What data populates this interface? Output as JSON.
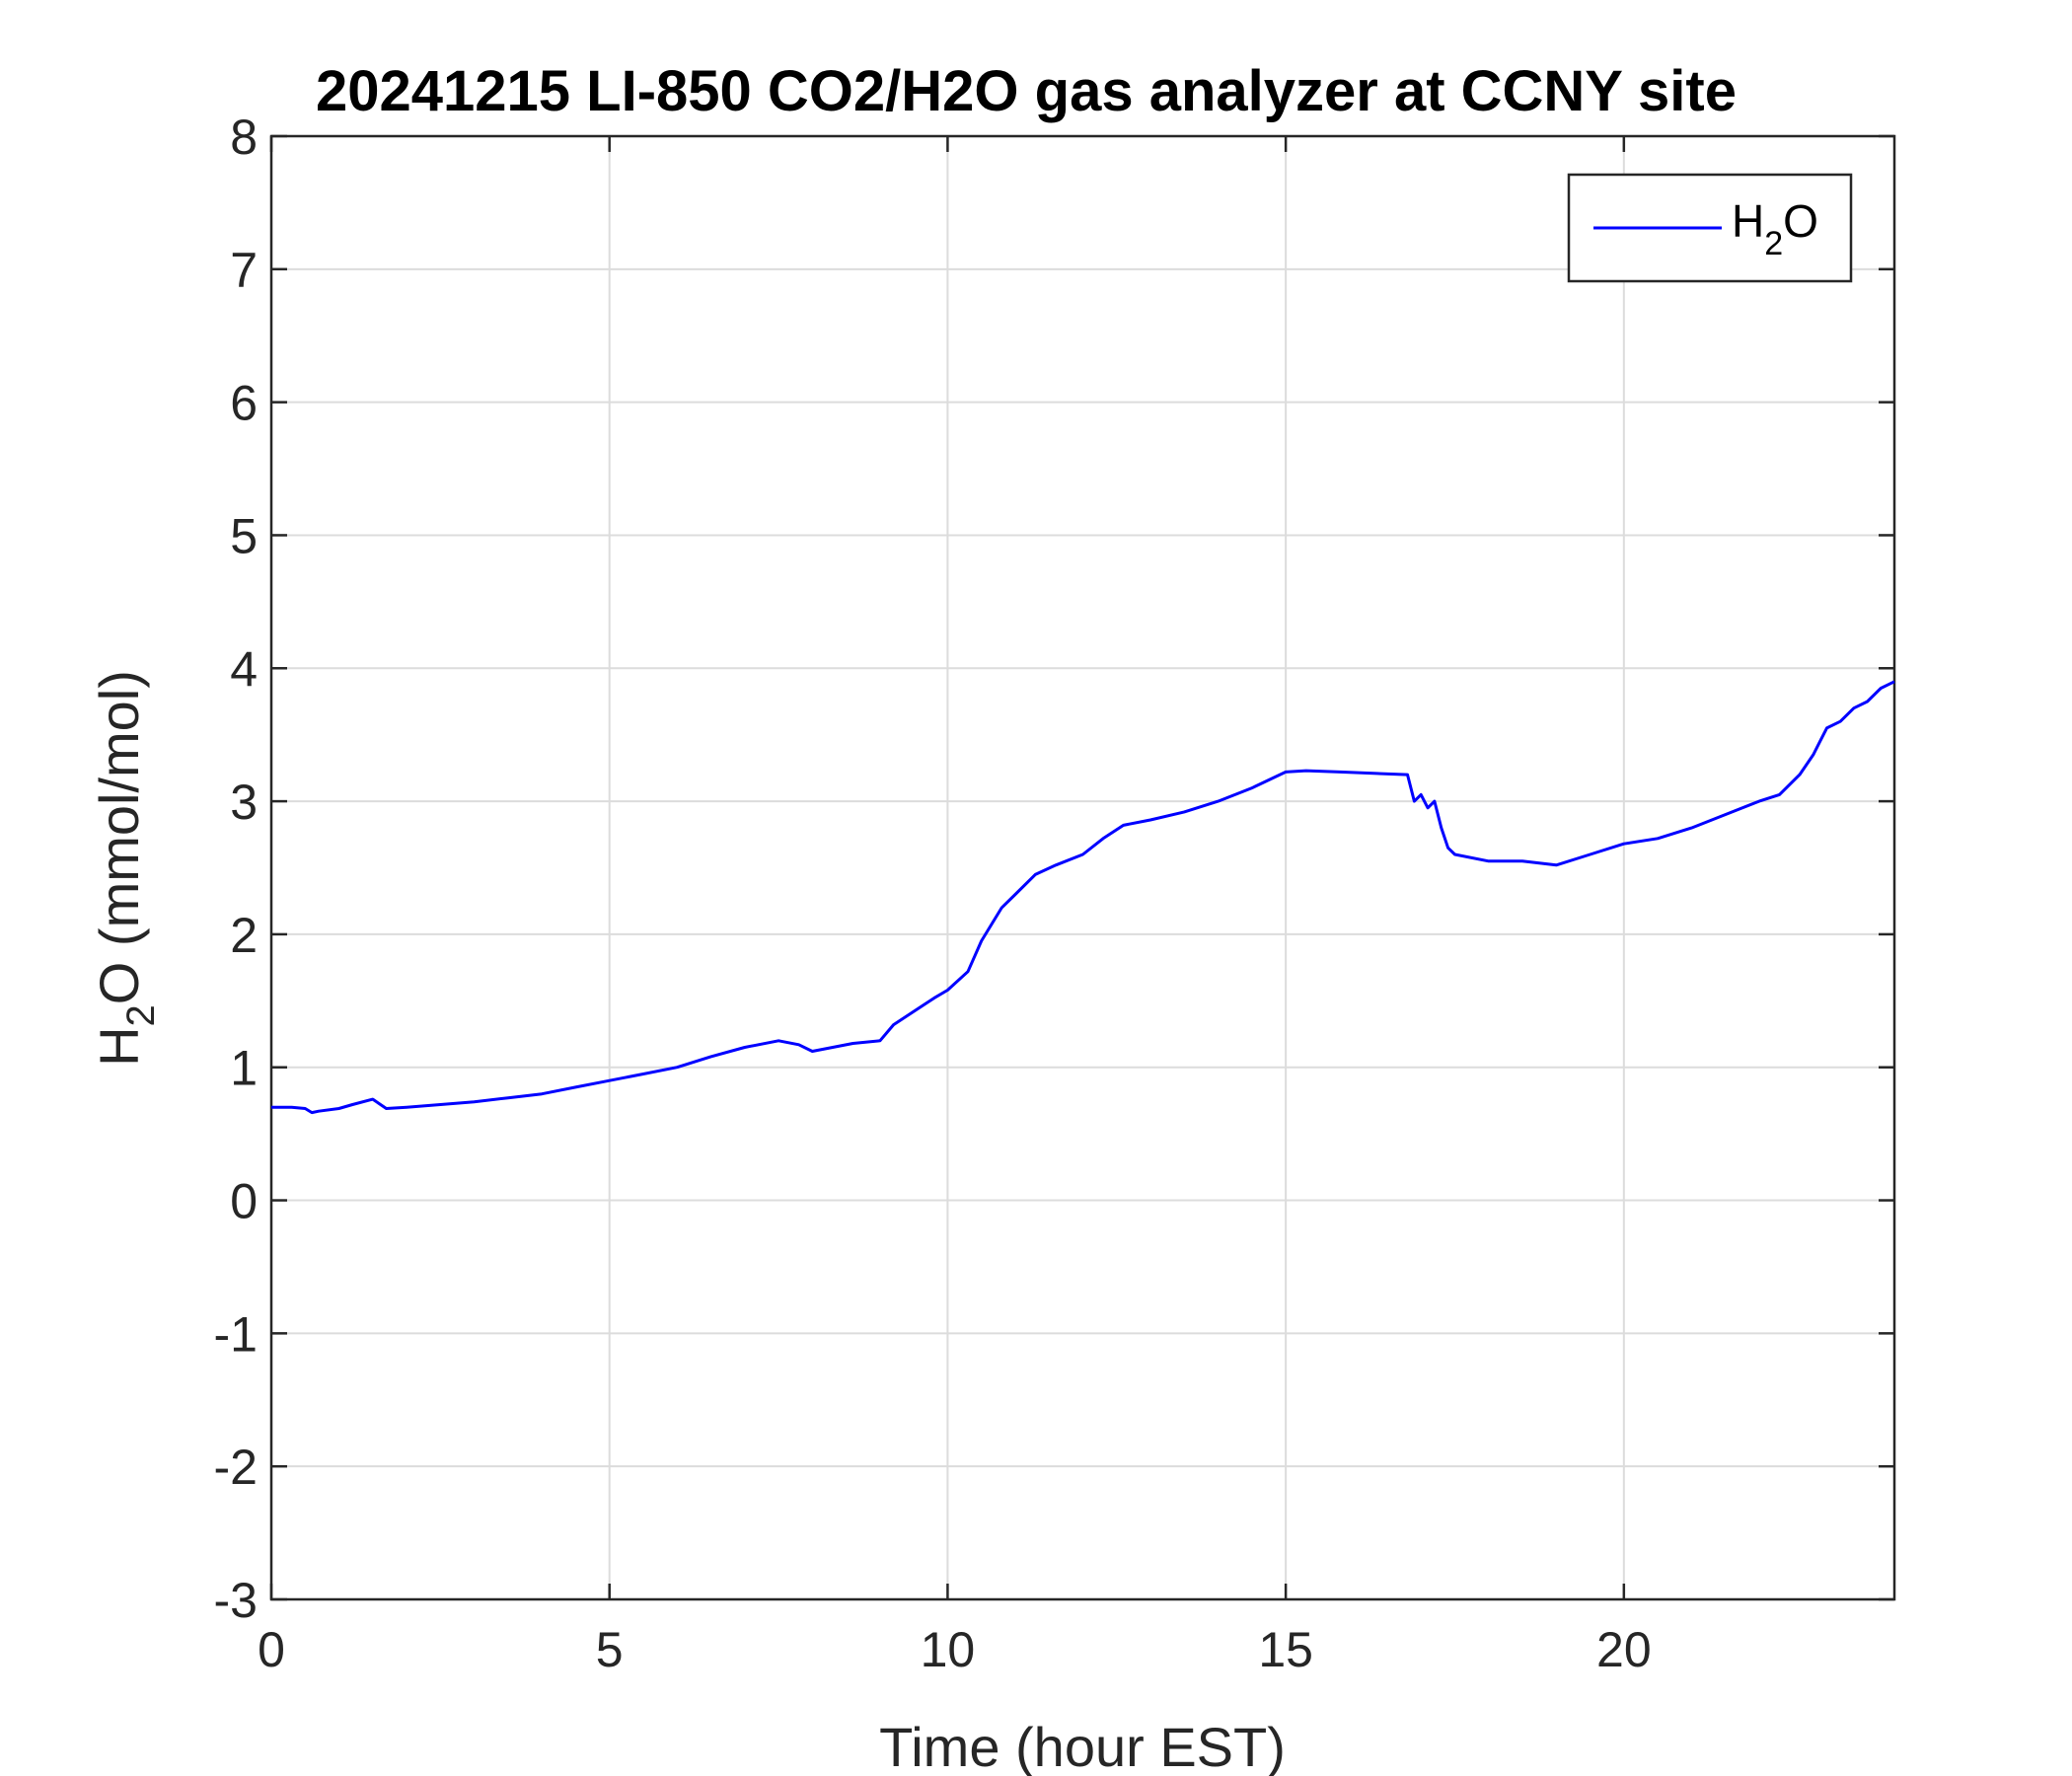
{
  "chart_data": {
    "type": "line",
    "title": "20241215 LI-850 CO2/H2O gas analyzer at CCNY site",
    "xlabel": "Time (hour EST)",
    "ylabel_main": "H",
    "ylabel_sub": "2",
    "ylabel_rest": "O (mmol/mol)",
    "xlim": [
      0,
      24
    ],
    "ylim": [
      -3,
      8
    ],
    "xticks": [
      "0",
      "5",
      "10",
      "15",
      "20"
    ],
    "yticks": [
      "-3",
      "-2",
      "-1",
      "0",
      "1",
      "2",
      "3",
      "4",
      "5",
      "6",
      "7",
      "8"
    ],
    "grid": true,
    "legend": {
      "position": "top-right",
      "main": "H",
      "sub": "2",
      "rest": "O"
    },
    "series": [
      {
        "name": "H2O",
        "color": "#0000ff",
        "x": [
          0,
          0.3,
          0.5,
          0.6,
          0.7,
          1.0,
          1.2,
          1.5,
          1.7,
          2.0,
          2.5,
          3.0,
          3.5,
          4.0,
          4.5,
          5.0,
          5.5,
          6.0,
          6.5,
          7.0,
          7.5,
          7.8,
          8.0,
          8.3,
          8.6,
          9.0,
          9.2,
          9.5,
          9.8,
          10.0,
          10.3,
          10.5,
          10.8,
          11.0,
          11.3,
          11.6,
          12.0,
          12.3,
          12.6,
          13.0,
          13.5,
          14.0,
          14.5,
          15.0,
          15.3,
          15.8,
          16.3,
          16.8,
          16.9,
          17.0,
          17.1,
          17.2,
          17.3,
          17.4,
          17.5,
          18.0,
          18.5,
          19.0,
          19.5,
          20.0,
          20.5,
          21.0,
          21.5,
          22.0,
          22.3,
          22.6,
          22.8,
          22.9,
          23.0,
          23.2,
          23.4,
          23.6,
          23.8,
          24.0
        ],
        "y": [
          0.7,
          0.7,
          0.69,
          0.66,
          0.67,
          0.69,
          0.72,
          0.76,
          0.69,
          0.7,
          0.72,
          0.74,
          0.77,
          0.8,
          0.85,
          0.9,
          0.95,
          1.0,
          1.08,
          1.15,
          1.2,
          1.17,
          1.12,
          1.15,
          1.18,
          1.2,
          1.32,
          1.42,
          1.52,
          1.58,
          1.72,
          1.95,
          2.2,
          2.3,
          2.45,
          2.52,
          2.6,
          2.72,
          2.82,
          2.86,
          2.92,
          3.0,
          3.1,
          3.22,
          3.23,
          3.22,
          3.21,
          3.2,
          3.0,
          3.05,
          2.95,
          3.0,
          2.8,
          2.65,
          2.6,
          2.55,
          2.55,
          2.52,
          2.6,
          2.68,
          2.72,
          2.8,
          2.9,
          3.0,
          3.05,
          3.2,
          3.35,
          3.45,
          3.55,
          3.6,
          3.7,
          3.75,
          3.85,
          3.9
        ]
      }
    ]
  }
}
